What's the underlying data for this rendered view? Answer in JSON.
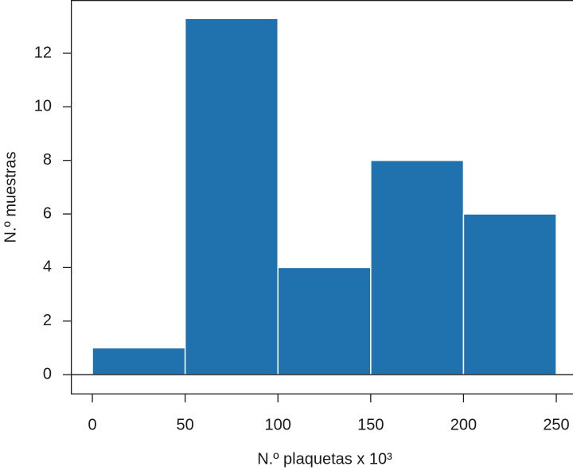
{
  "chart_data": {
    "type": "histogram",
    "x_label": "N.º plaquetas x 10³",
    "y_label": "N.º muestras",
    "bins": [
      0,
      50,
      100,
      150,
      200,
      250
    ],
    "values": [
      1,
      13.3,
      4,
      8,
      6
    ],
    "color": "#1f72ad",
    "xlim": [
      -11.6,
      259
    ],
    "ylim": [
      -0.74,
      13.99
    ],
    "xticks": [
      0,
      50,
      100,
      150,
      200,
      250
    ],
    "yticks": [
      0,
      2,
      4,
      6,
      8,
      10,
      12
    ]
  }
}
